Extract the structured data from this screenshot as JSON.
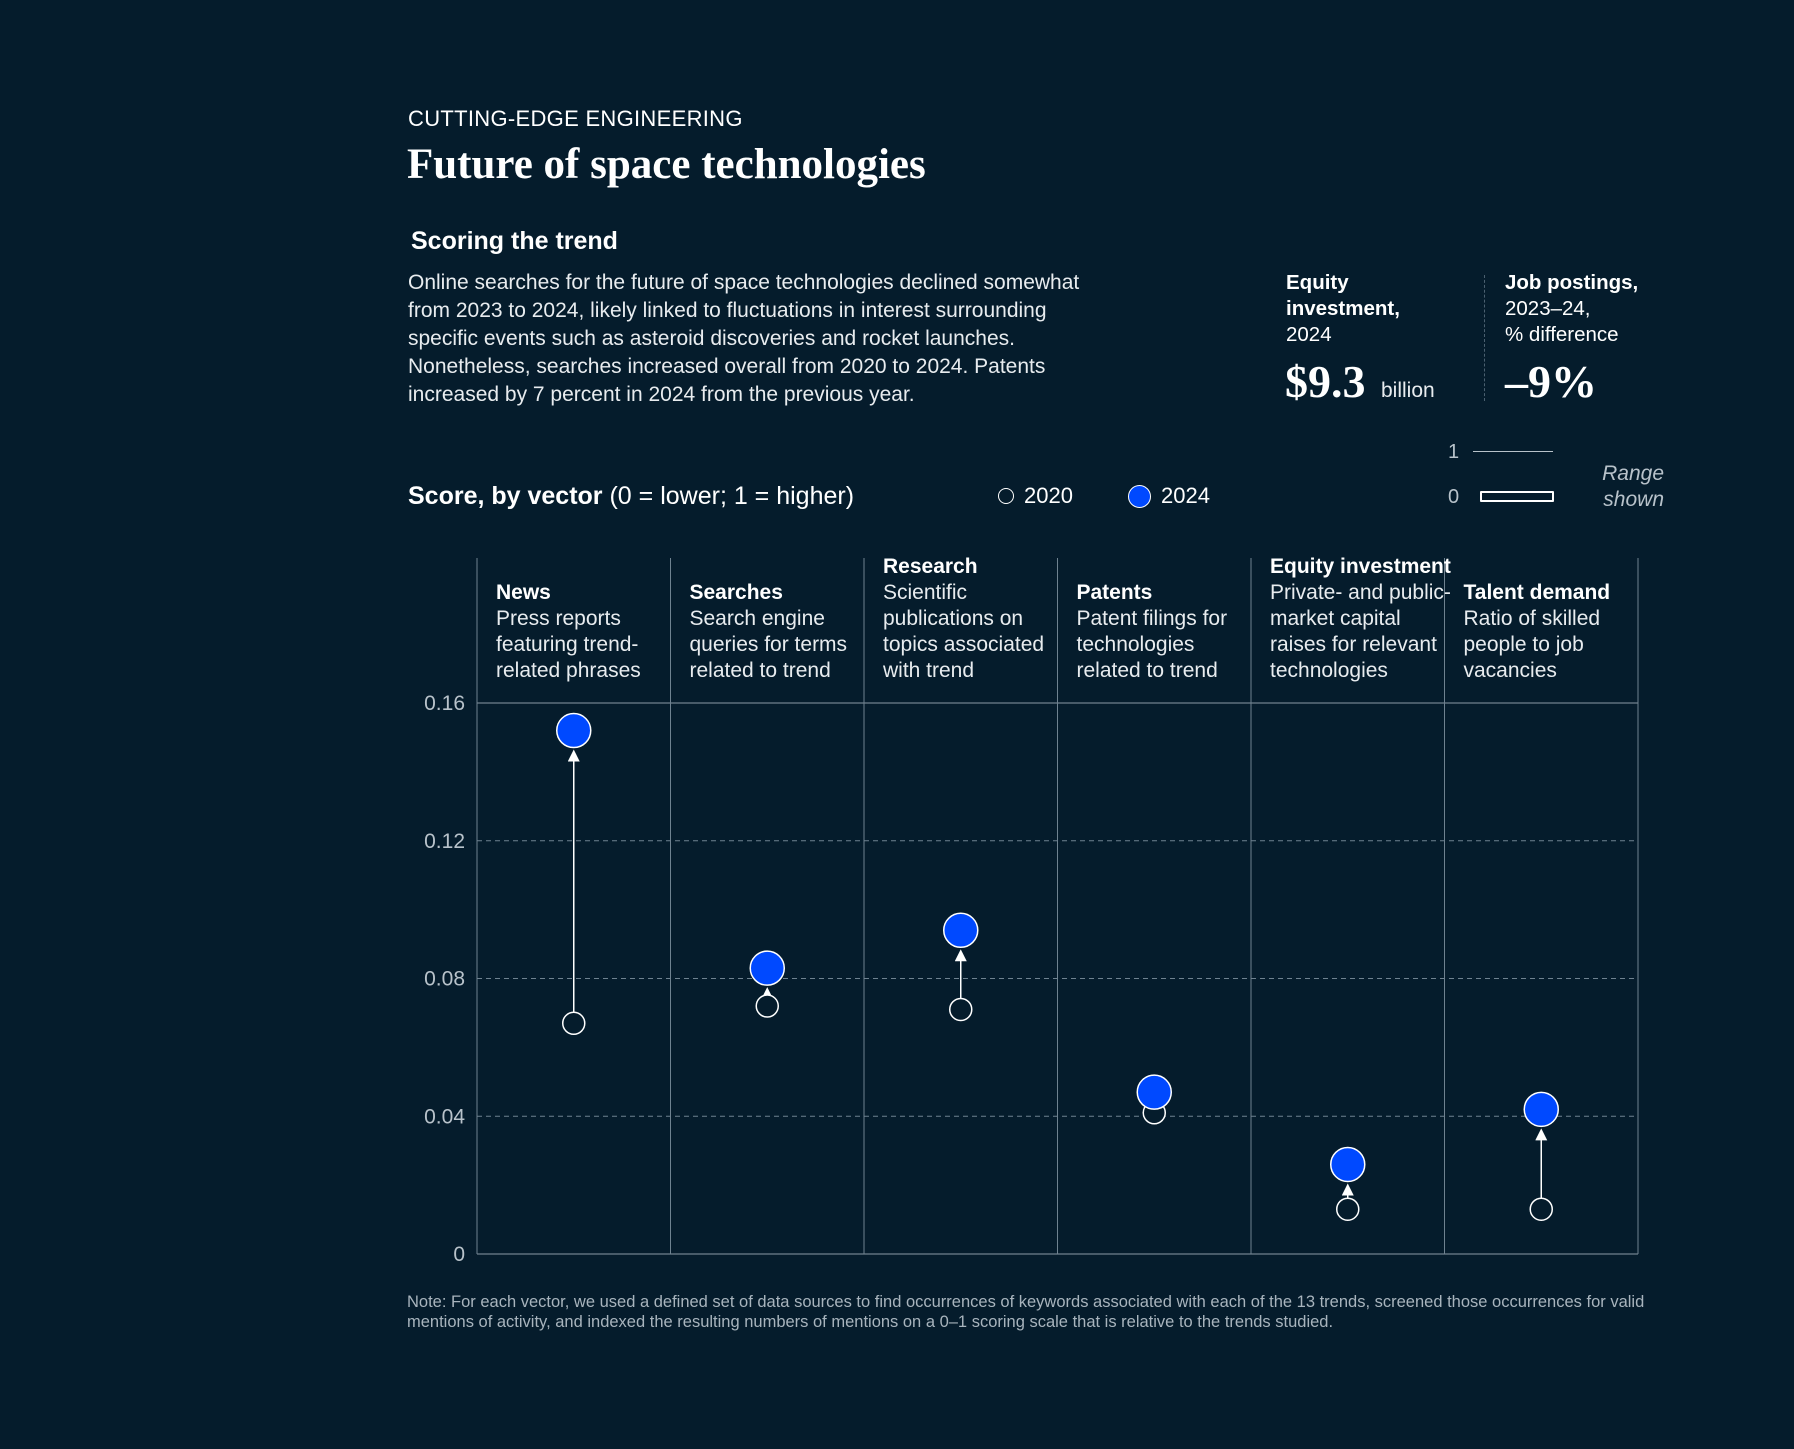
{
  "header": {
    "kicker": "CUTTING-EDGE ENGINEERING",
    "title": "Future of space technologies",
    "subhead": "Scoring the trend",
    "body": "Online searches for the future of space technologies declined somewhat from 2023 to 2024, likely linked to fluctuations in interest surrounding specific events such as asteroid discoveries and rocket launches. Nonetheless, searches increased overall from 2020 to 2024. Patents increased by 7 percent in 2024 from the previous year."
  },
  "stats": {
    "equity": {
      "label_bold_1": "Equity",
      "label_bold_2": "investment,",
      "label_normal": "2024",
      "value": "$9.3",
      "unit": "billion"
    },
    "jobs": {
      "label_bold": "Job postings,",
      "label_normal_1": "2023–24,",
      "label_normal_2": "% difference",
      "value": "–9%"
    }
  },
  "score_header": {
    "bold": "Score, by vector",
    "normal": " (0 = lower; 1 = higher)"
  },
  "legend": {
    "y2020": "2020",
    "y2024": "2024"
  },
  "range_key": {
    "one": "1",
    "zero": "0",
    "text_1": "Range",
    "text_2": "shown"
  },
  "colors": {
    "background": "#051c2c",
    "point_2024": "#0049ff",
    "point_2020_stroke": "#ffffff",
    "gridline": "#6f8290"
  },
  "chart_data": {
    "type": "scatter",
    "ylim": [
      0,
      0.16
    ],
    "yticks": [
      "0.16",
      "0.12",
      "0.08",
      "0.04",
      "0"
    ],
    "ytick_values": [
      0.16,
      0.12,
      0.08,
      0.04,
      0
    ],
    "grid": true,
    "categories": [
      {
        "name": "News",
        "desc": [
          "Press reports",
          "featuring trend-",
          "related phrases"
        ],
        "v2020": 0.067,
        "v2024": 0.152
      },
      {
        "name": "Searches",
        "desc": [
          "Search engine",
          "queries for terms",
          "related to trend"
        ],
        "v2020": 0.072,
        "v2024": 0.083
      },
      {
        "name": "Research",
        "desc": [
          "Scientific",
          "publications on",
          "topics associated",
          "with trend"
        ],
        "v2020": 0.071,
        "v2024": 0.094
      },
      {
        "name": "Patents",
        "desc": [
          "Patent filings for",
          "technologies",
          "related to trend"
        ],
        "v2020": 0.041,
        "v2024": 0.047
      },
      {
        "name": "Equity investment",
        "desc": [
          "Private- and public-",
          "market capital",
          "raises for relevant",
          "technologies"
        ],
        "v2020": 0.013,
        "v2024": 0.026
      },
      {
        "name": "Talent demand",
        "desc": [
          "Ratio of skilled",
          "people to job",
          "vacancies"
        ],
        "v2020": 0.013,
        "v2024": 0.042
      }
    ],
    "series": [
      {
        "name": "2020",
        "values": [
          0.067,
          0.072,
          0.071,
          0.041,
          0.013,
          0.013
        ]
      },
      {
        "name": "2024",
        "values": [
          0.152,
          0.083,
          0.094,
          0.047,
          0.026,
          0.042
        ]
      }
    ]
  },
  "note": "Note: For each vector, we used a defined set of data sources to find occurrences of keywords associated with each of the 13 trends, screened those occurrences for valid mentions of activity, and indexed the resulting numbers of mentions on a 0–1 scoring scale that is relative to the trends studied."
}
